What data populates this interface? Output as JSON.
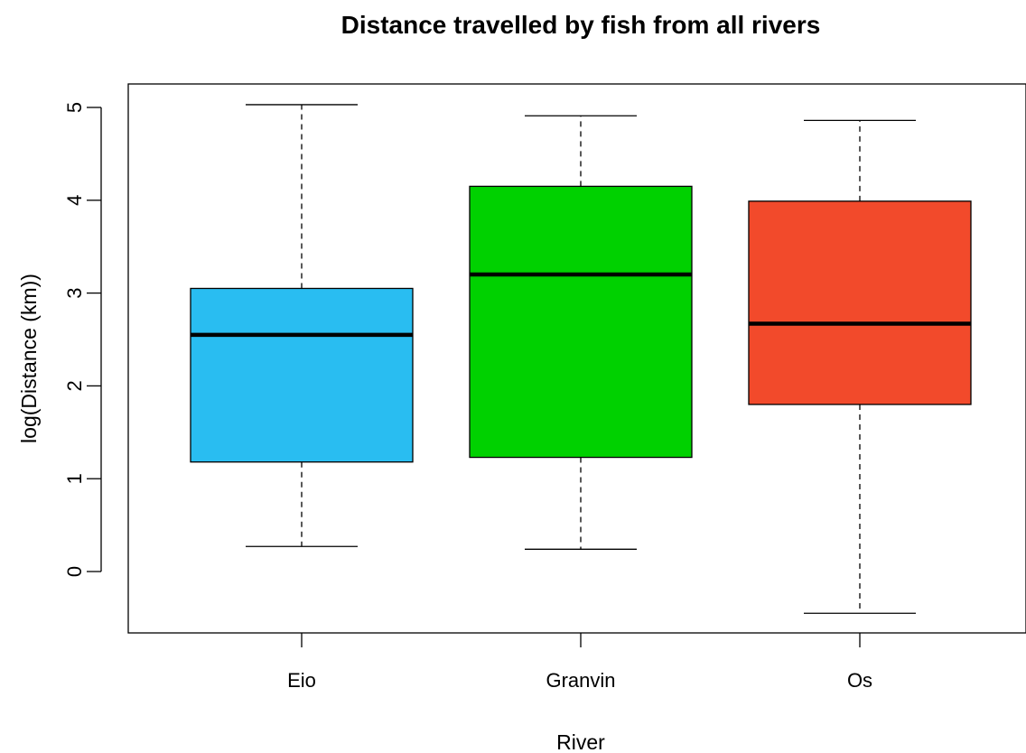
{
  "chart_data": {
    "type": "boxplot",
    "title": "Distance travelled by fish from all rivers",
    "xlabel": "River",
    "ylabel": "log(Distance (km))",
    "ylim": [
      -0.65,
      5.25
    ],
    "yticks": [
      "0",
      "1",
      "2",
      "3",
      "4",
      "5"
    ],
    "grid": false,
    "legend": "none",
    "categories": [
      "Eio",
      "Granvin",
      "Os"
    ],
    "boxes": [
      {
        "category": "Eio",
        "min": 0.27,
        "q1": 1.18,
        "median": 2.55,
        "q3": 3.05,
        "max": 5.03,
        "color": "#29BDF1"
      },
      {
        "category": "Granvin",
        "min": 0.24,
        "q1": 1.23,
        "median": 3.2,
        "q3": 4.15,
        "max": 4.91,
        "color": "#00D100"
      },
      {
        "category": "Os",
        "min": -0.45,
        "q1": 1.8,
        "median": 2.67,
        "q3": 3.99,
        "max": 4.86,
        "color": "#F24A2B"
      }
    ]
  }
}
